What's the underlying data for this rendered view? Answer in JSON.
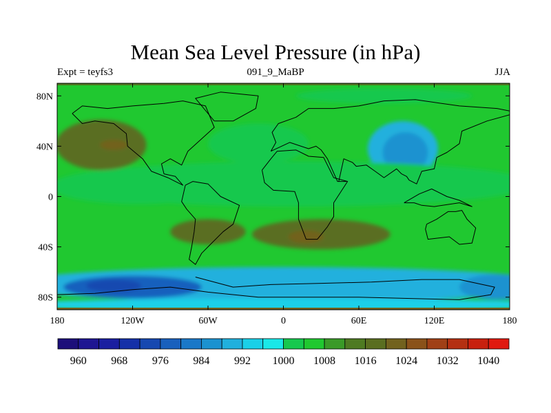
{
  "chart_data": {
    "type": "heatmap",
    "title": "Mean Sea Level Pressure (in hPa)",
    "left_string": "Expt = teyfs3",
    "center_string": "091_9_MaBP",
    "right_string": "JJA",
    "xlim": [
      -180,
      180
    ],
    "ylim": [
      -90,
      90
    ],
    "x_ticks": [
      {
        "value": -180,
        "label": "180"
      },
      {
        "value": -120,
        "label": "120W"
      },
      {
        "value": -60,
        "label": "60W"
      },
      {
        "value": 0,
        "label": "0"
      },
      {
        "value": 60,
        "label": "60E"
      },
      {
        "value": 120,
        "label": "120E"
      },
      {
        "value": 180,
        "label": "180"
      }
    ],
    "y_ticks": [
      {
        "value": 80,
        "label": "80N"
      },
      {
        "value": 40,
        "label": "40N"
      },
      {
        "value": 0,
        "label": "0"
      },
      {
        "value": -40,
        "label": "40S"
      },
      {
        "value": -80,
        "label": "80S"
      }
    ],
    "contour_levels": [
      956,
      960,
      964,
      968,
      972,
      976,
      980,
      984,
      988,
      992,
      996,
      1000,
      1004,
      1008,
      1012,
      1016,
      1020,
      1024,
      1028,
      1032,
      1036,
      1040
    ],
    "colorbar_labels": [
      960,
      968,
      976,
      984,
      992,
      1000,
      1008,
      1016,
      1024,
      1032,
      1040
    ],
    "colors": [
      "#1c0f7a",
      "#1e1692",
      "#1a1fa0",
      "#1530a8",
      "#1648b0",
      "#1960bd",
      "#1a78c8",
      "#1b92d0",
      "#20b0dd",
      "#1ad0e8",
      "#1ae8e8",
      "#16c84e",
      "#20c830",
      "#3a9a28",
      "#4e7a22",
      "#5a6e20",
      "#72621e",
      "#8a521a",
      "#a04016",
      "#b43012",
      "#c8200e",
      "#e01a10"
    ],
    "base_value": 1004,
    "features": [
      {
        "name": "subtropical-high-north-pacific",
        "lon": -145,
        "lat": 41,
        "rx": 36,
        "ry": 20,
        "value": 1018
      },
      {
        "name": "north-pacific-core",
        "lon": -135,
        "lat": 41,
        "rx": 11,
        "ry": 4,
        "value": 1021
      },
      {
        "name": "asian-low",
        "lon": 95,
        "lat": 38,
        "rx": 28,
        "ry": 22,
        "value": 990
      },
      {
        "name": "asian-low-core",
        "lon": 97,
        "lat": 35,
        "rx": 18,
        "ry": 16,
        "value": 984
      },
      {
        "name": "tropical-belt",
        "lon": 10,
        "lat": 10,
        "rx": 190,
        "ry": 18,
        "value": 1000
      },
      {
        "name": "atlantic-band",
        "lon": -20,
        "lat": 42,
        "rx": 40,
        "ry": 16,
        "value": 1000
      },
      {
        "name": "pacific-band",
        "lon": -115,
        "lat": 8,
        "rx": 70,
        "ry": 14,
        "value": 1002
      },
      {
        "name": "arctic-band",
        "lon": 80,
        "lat": 80,
        "rx": 70,
        "ry": 6,
        "value": 1001
      },
      {
        "name": "south-pacific-high",
        "lon": -60,
        "lat": -28,
        "rx": 30,
        "ry": 10,
        "value": 1017
      },
      {
        "name": "south-atlantic-indian-high",
        "lon": 30,
        "lat": -30,
        "rx": 55,
        "ry": 12,
        "value": 1018
      },
      {
        "name": "south-indian-core",
        "lon": 18,
        "lat": -32,
        "rx": 14,
        "ry": 5,
        "value": 1021
      },
      {
        "name": "southern-ocean-belt",
        "lon": 0,
        "lat": -70,
        "rx": 220,
        "ry": 14,
        "value": 988
      },
      {
        "name": "southern-ocean-low",
        "lon": -120,
        "lat": -72,
        "rx": 55,
        "ry": 9,
        "value": 979
      },
      {
        "name": "southern-ocean-core",
        "lon": -135,
        "lat": -71,
        "rx": 22,
        "ry": 5,
        "value": 973
      },
      {
        "name": "antarctic-margin",
        "lon": 0,
        "lat": -86,
        "rx": 220,
        "ry": 5,
        "value": 992
      },
      {
        "name": "south-pacific-east-low",
        "lon": 170,
        "lat": -72,
        "rx": 30,
        "ry": 10,
        "value": 985
      }
    ]
  }
}
